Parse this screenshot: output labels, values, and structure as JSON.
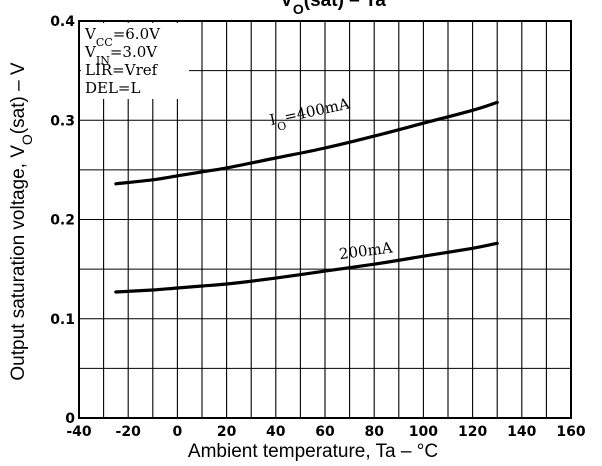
{
  "chart_data": {
    "type": "line",
    "title": {
      "main": "V",
      "sub": "O",
      "rest": "(sat) – Ta"
    },
    "xlabel": "Ambient temperature, Ta – °C",
    "ylabel": {
      "main": "Output saturation voltage, V",
      "sub": "O",
      "rest": "(sat) – V"
    },
    "xlim": [
      -40,
      160
    ],
    "ylim": [
      0,
      0.4
    ],
    "xticks": [
      {
        "value": -40,
        "label": "-40"
      },
      {
        "value": -20,
        "label": "-20"
      },
      {
        "value": 0,
        "label": "0"
      },
      {
        "value": 20,
        "label": "20"
      },
      {
        "value": 40,
        "label": "40"
      },
      {
        "value": 60,
        "label": "60"
      },
      {
        "value": 80,
        "label": "80"
      },
      {
        "value": 100,
        "label": "100"
      },
      {
        "value": 120,
        "label": "120"
      },
      {
        "value": 140,
        "label": "140"
      },
      {
        "value": 160,
        "label": "160"
      }
    ],
    "yticks": [
      {
        "value": 0,
        "label": "0"
      },
      {
        "value": 0.1,
        "label": "0.1"
      },
      {
        "value": 0.2,
        "label": "0.2"
      },
      {
        "value": 0.3,
        "label": "0.3"
      },
      {
        "value": 0.4,
        "label": "0.4"
      }
    ],
    "x_gridlines": [
      -40,
      -30,
      -20,
      -10,
      0,
      10,
      20,
      30,
      40,
      50,
      60,
      70,
      80,
      90,
      100,
      110,
      120,
      130,
      140,
      150,
      160
    ],
    "y_gridlines": [
      0,
      0.05,
      0.1,
      0.15,
      0.2,
      0.25,
      0.3,
      0.35,
      0.4
    ],
    "grid": true,
    "conditions": [
      {
        "main": "V",
        "sub": "CC",
        "rest": "=6.0V"
      },
      {
        "main": "V",
        "sub": "IN",
        "rest": "=3.0V"
      },
      {
        "main": "LIR=Vref",
        "sub": "",
        "rest": ""
      },
      {
        "main": "DEL=L",
        "sub": "",
        "rest": ""
      }
    ],
    "conditions_position": "top-left",
    "series": [
      {
        "label": {
          "main": "I",
          "sub": "O",
          "rest": "=400mA"
        },
        "label_anchor": [
          38,
          0.295
        ],
        "x": [
          -25,
          -10,
          0,
          10,
          20,
          40,
          60,
          80,
          100,
          120,
          130
        ],
        "y": [
          0.236,
          0.24,
          0.244,
          0.248,
          0.252,
          0.262,
          0.272,
          0.284,
          0.297,
          0.31,
          0.318
        ]
      },
      {
        "label": {
          "main": "200mA",
          "sub": "",
          "rest": ""
        },
        "label_anchor": [
          66,
          0.16
        ],
        "x": [
          -25,
          -10,
          0,
          10,
          20,
          40,
          60,
          80,
          100,
          120,
          130
        ],
        "y": [
          0.127,
          0.129,
          0.131,
          0.133,
          0.135,
          0.141,
          0.148,
          0.155,
          0.163,
          0.171,
          0.176
        ]
      }
    ]
  }
}
